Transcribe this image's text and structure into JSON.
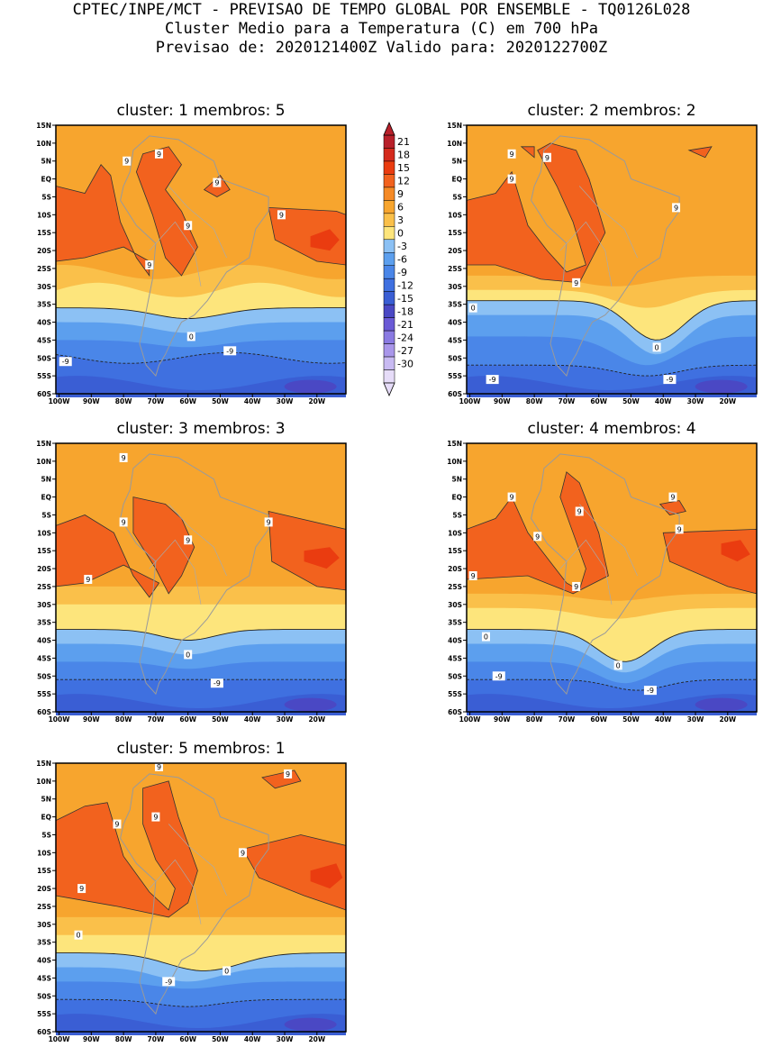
{
  "header": {
    "line1": "CPTEC/INPE/MCT - PREVISAO DE TEMPO GLOBAL POR ENSEMBLE - TQ0126L028",
    "line2": "Cluster Medio para a Temperatura (C) em 700 hPa",
    "line3": "Previsao de: 2020121400Z   Valido para: 2020122700Z"
  },
  "lat_ticks": [
    "15N",
    "10N",
    "5N",
    "EQ",
    "5S",
    "10S",
    "15S",
    "20S",
    "25S",
    "30S",
    "35S",
    "40S",
    "45S",
    "50S",
    "55S",
    "60S"
  ],
  "lon_ticks": [
    "100W",
    "90W",
    "80W",
    "70W",
    "60W",
    "50W",
    "40W",
    "30W",
    "20W"
  ],
  "colorbar": {
    "labels": [
      "21",
      "18",
      "15",
      "12",
      "9",
      "6",
      "3",
      "0",
      "-3",
      "-6",
      "-9",
      "-12",
      "-15",
      "-18",
      "-21",
      "-24",
      "-27",
      "-30"
    ],
    "colors": [
      "#b8202a",
      "#d42a1c",
      "#ea3c10",
      "#f2621e",
      "#f58a26",
      "#f7a52e",
      "#fac04a",
      "#fde57c",
      "#8cc1f4",
      "#5c9fee",
      "#4a86e8",
      "#3f70e0",
      "#3a5ed4",
      "#4a48c4",
      "#6a5ad6",
      "#8a7ae2",
      "#a996ea",
      "#c8baf2",
      "#e6dcf8"
    ]
  },
  "clusters": [
    {
      "title": "cluster:  1   membros:  5",
      "labels": [
        {
          "t": "9",
          "lon": -79,
          "lat": 5
        },
        {
          "t": "9",
          "lon": -69,
          "lat": 7
        },
        {
          "t": "9",
          "lon": -51,
          "lat": -1
        },
        {
          "t": "9",
          "lon": -60,
          "lat": -13
        },
        {
          "t": "9",
          "lon": -31,
          "lat": -10
        },
        {
          "t": "9",
          "lon": -72,
          "lat": -24
        },
        {
          "t": "0",
          "lon": -59,
          "lat": -44
        },
        {
          "t": "-9",
          "lon": -47,
          "lat": -48
        },
        {
          "t": "-9",
          "lon": -98,
          "lat": -51
        }
      ]
    },
    {
      "title": "cluster:  2   membros:  2",
      "labels": [
        {
          "t": "9",
          "lon": -87,
          "lat": 7
        },
        {
          "t": "9",
          "lon": -76,
          "lat": 6
        },
        {
          "t": "9",
          "lon": -87,
          "lat": 0
        },
        {
          "t": "9",
          "lon": -36,
          "lat": -8
        },
        {
          "t": "9",
          "lon": -67,
          "lat": -29
        },
        {
          "t": "0",
          "lon": -99,
          "lat": -36
        },
        {
          "t": "0",
          "lon": -42,
          "lat": -47
        },
        {
          "t": "-9",
          "lon": -93,
          "lat": -56
        },
        {
          "t": "-9",
          "lon": -38,
          "lat": -56
        }
      ]
    },
    {
      "title": "cluster:  3   membros:  3",
      "labels": [
        {
          "t": "9",
          "lon": -80,
          "lat": 11
        },
        {
          "t": "9",
          "lon": -80,
          "lat": -7
        },
        {
          "t": "9",
          "lon": -60,
          "lat": -12
        },
        {
          "t": "9",
          "lon": -35,
          "lat": -7
        },
        {
          "t": "9",
          "lon": -91,
          "lat": -23
        },
        {
          "t": "0",
          "lon": -60,
          "lat": -44
        },
        {
          "t": "-9",
          "lon": -51,
          "lat": -52
        }
      ]
    },
    {
      "title": "cluster:  4   membros:  4",
      "labels": [
        {
          "t": "9",
          "lon": -87,
          "lat": 0
        },
        {
          "t": "9",
          "lon": -66,
          "lat": -4
        },
        {
          "t": "9",
          "lon": -37,
          "lat": 0
        },
        {
          "t": "9",
          "lon": -79,
          "lat": -11
        },
        {
          "t": "9",
          "lon": -35,
          "lat": -9
        },
        {
          "t": "9",
          "lon": -67,
          "lat": -25
        },
        {
          "t": "9",
          "lon": -99,
          "lat": -22
        },
        {
          "t": "0",
          "lon": -95,
          "lat": -39
        },
        {
          "t": "0",
          "lon": -54,
          "lat": -47
        },
        {
          "t": "-9",
          "lon": -91,
          "lat": -50
        },
        {
          "t": "-9",
          "lon": -44,
          "lat": -54
        }
      ]
    },
    {
      "title": "cluster:  5   membros:  1",
      "labels": [
        {
          "t": "9",
          "lon": -69,
          "lat": 14
        },
        {
          "t": "9",
          "lon": -29,
          "lat": 12
        },
        {
          "t": "9",
          "lon": -82,
          "lat": -2
        },
        {
          "t": "9",
          "lon": -70,
          "lat": 0
        },
        {
          "t": "9",
          "lon": -43,
          "lat": -10
        },
        {
          "t": "9",
          "lon": -93,
          "lat": -20
        },
        {
          "t": "0",
          "lon": -94,
          "lat": -33
        },
        {
          "t": "0",
          "lon": -48,
          "lat": -43
        },
        {
          "t": "-9",
          "lon": -66,
          "lat": -46
        }
      ]
    }
  ]
}
